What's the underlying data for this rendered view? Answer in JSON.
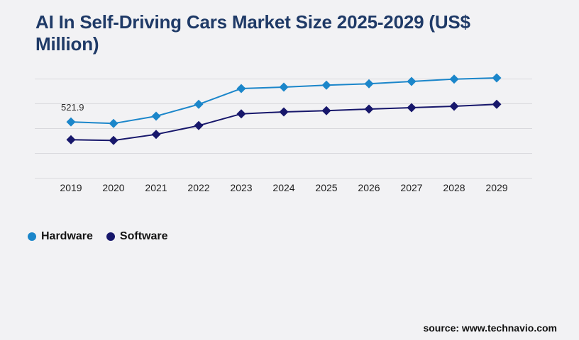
{
  "page": {
    "background_color": "#f2f2f4",
    "source_text": "source: www.technavio.com"
  },
  "chart_data": {
    "type": "line",
    "title": "AI In Self-Driving Cars Market Size 2025-2029 (US$ Million)",
    "title_color": "#1f3a67",
    "categories": [
      "2019",
      "2020",
      "2021",
      "2022",
      "2023",
      "2024",
      "2025",
      "2026",
      "2027",
      "2028",
      "2029"
    ],
    "series": [
      {
        "name": "Hardware",
        "color": "#1b86ca",
        "marker": "diamond",
        "values": [
          521.9,
          507.3,
          575.0,
          684.8,
          831.2,
          844.4,
          862.1,
          875.3,
          897.0,
          918.6,
          929.8
        ]
      },
      {
        "name": "Software",
        "color": "#17176b",
        "marker": "diamond",
        "values": [
          356.2,
          349.6,
          406.1,
          487.6,
          596.7,
          614.4,
          625.6,
          640.7,
          653.9,
          667.0,
          684.8
        ]
      }
    ],
    "annotation": {
      "text": "521.9",
      "series": "Hardware",
      "category": "2019"
    },
    "xlabel": "",
    "ylabel": "",
    "ylim": [
      0,
      920
    ],
    "y_axis_labels_visible": false,
    "grid": "horizontal",
    "gridline_count": 5,
    "gridline_color": "#d9d9dd",
    "legend_position": "bottom-left"
  }
}
